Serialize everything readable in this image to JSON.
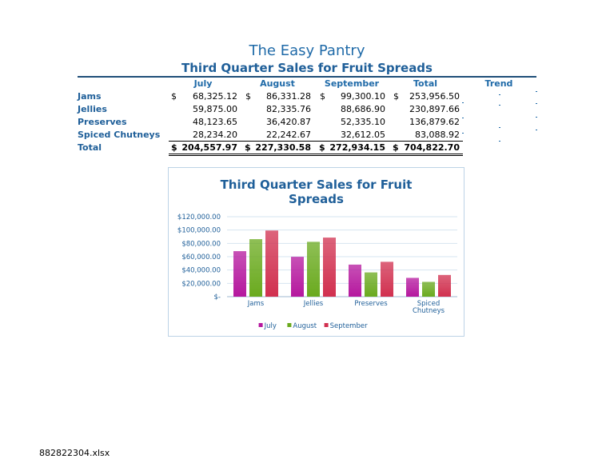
{
  "header": {
    "company": "The Easy Pantry",
    "subtitle": "Third Quarter Sales for Fruit Spreads"
  },
  "table": {
    "columns": [
      "July",
      "August",
      "September",
      "Total",
      "Trend"
    ],
    "currency_symbol": "$",
    "rows": [
      {
        "label": "Jams",
        "values": [
          "68,325.12",
          "86,331.28",
          "99,300.10",
          "253,956.50"
        ]
      },
      {
        "label": "Jellies",
        "values": [
          "59,875.00",
          "82,335.76",
          "88,686.90",
          "230,897.66"
        ]
      },
      {
        "label": "Preserves",
        "values": [
          "48,123.65",
          "36,420.87",
          "52,335.10",
          "136,879.62"
        ]
      },
      {
        "label": "Spiced Chutneys",
        "values": [
          "28,234.20",
          "22,242.67",
          "32,612.05",
          "83,088.92"
        ]
      }
    ],
    "total": {
      "label": "Total",
      "values": [
        "204,557.97",
        "227,330.58",
        "272,934.15",
        "704,822.70"
      ]
    }
  },
  "chart_data": {
    "type": "bar",
    "title": "Third Quarter Sales for Fruit Spreads",
    "title_lines": [
      "Third Quarter Sales for Fruit",
      "Spreads"
    ],
    "categories": [
      "Jams",
      "Jellies",
      "Preserves",
      "Spiced Chutneys"
    ],
    "category_lines": [
      [
        "Jams"
      ],
      [
        "Jellies"
      ],
      [
        "Preserves"
      ],
      [
        "Spiced",
        "Chutneys"
      ]
    ],
    "series": [
      {
        "name": "July",
        "values": [
          68325.12,
          59875.0,
          48123.65,
          28234.2
        ],
        "color": "#b5179e"
      },
      {
        "name": "August",
        "values": [
          86331.28,
          82335.76,
          36420.87,
          22242.67
        ],
        "color": "#6aaa1e"
      },
      {
        "name": "September",
        "values": [
          99300.1,
          88686.9,
          52335.1,
          32612.05
        ],
        "color": "#d1304f"
      }
    ],
    "ylim": [
      0,
      120000
    ],
    "yticks": [
      0,
      20000,
      40000,
      60000,
      80000,
      100000,
      120000
    ],
    "ytick_labels": [
      "$-",
      "$20,000.00",
      "$40,000.00",
      "$60,000.00",
      "$80,000.00",
      "$100,000.00",
      "$120,000.00"
    ],
    "grid": true,
    "legend": "bottom"
  },
  "footer": {
    "filename": "882822304.xlsx"
  },
  "colors": {
    "accent": "#1f6aa8",
    "rule": "#1f4e79"
  }
}
